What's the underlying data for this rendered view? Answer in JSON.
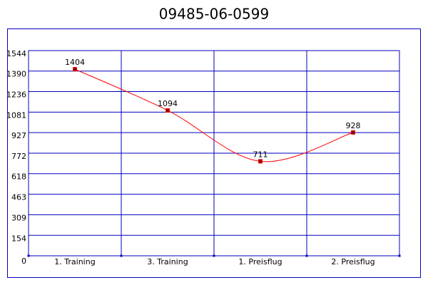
{
  "chart_data": {
    "type": "line",
    "title": "09485-06-0599",
    "categories": [
      "1. Training",
      "3. Training",
      "1. Preisflug",
      "2. Preisflug"
    ],
    "values": [
      1404,
      1094,
      711,
      928
    ],
    "color": "#ff0000",
    "marker_color": "#800000",
    "grid_color": "#0000c0",
    "ylim": [
      0,
      1544
    ],
    "yticks": [
      0,
      154,
      309,
      463,
      618,
      772,
      927,
      1081,
      1236,
      1390,
      1544
    ],
    "grid": true,
    "smooth": true
  }
}
